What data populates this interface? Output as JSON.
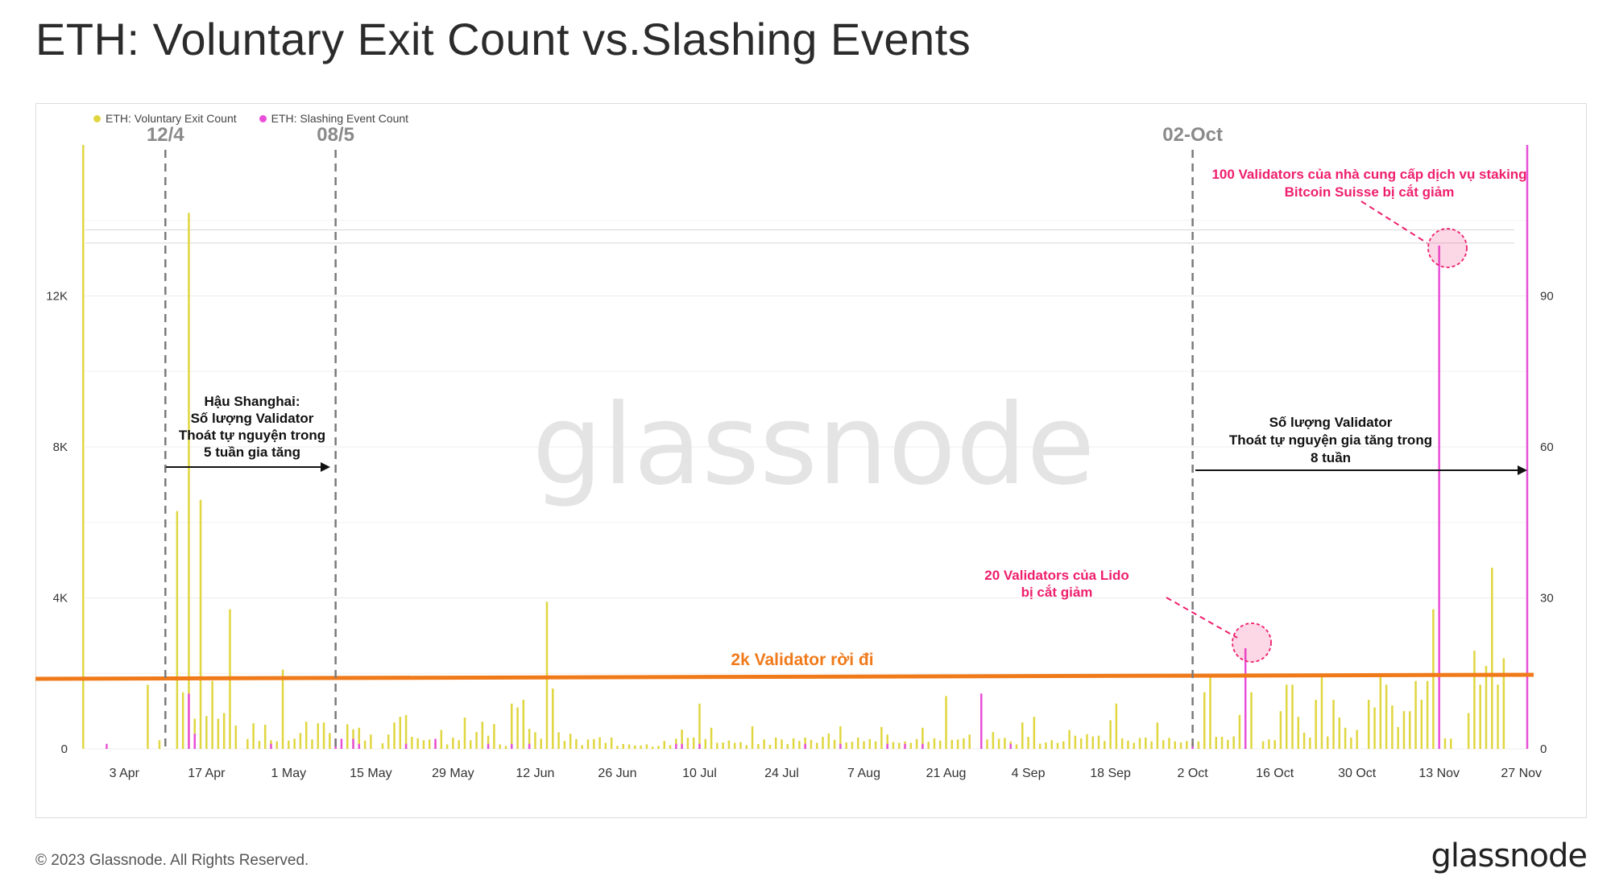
{
  "title": "ETH: Voluntary Exit Count vs.Slashing Events",
  "footer": "© 2023 Glassnode. All Rights Reserved.",
  "brand": "glassnode",
  "watermark": "glassnode",
  "legend": {
    "exit": "ETH: Voluntary Exit Count",
    "slash": "ETH: Slashing Event Count"
  },
  "colors": {
    "exit": "#e0d640",
    "slash": "#e94fd8",
    "threshold": "#f07a1a",
    "annotation": "#ee1f6d",
    "marker": "#7a7a7a"
  },
  "annotations": {
    "line_12_4": "12/4",
    "line_08_5": "08/5",
    "line_02_oct": "02-Oct",
    "shanghai": [
      "Hậu Shanghai:",
      "Số lượng Validator",
      "Thoát tự nguyện trong",
      "5 tuần gia tăng"
    ],
    "eight_weeks": [
      "Số lượng Validator",
      "Thoát tự nguyện gia tăng trong",
      "8 tuần"
    ],
    "lido": [
      "20 Validators của Lido",
      "bị cắt giảm"
    ],
    "bitcoin_suisse": [
      "100 Validators của nhà cung cấp dịch vụ staking",
      "Bitcoin Suisse bị cắt giảm"
    ],
    "threshold_label": "2k Validator rời đi"
  },
  "chart_data": {
    "type": "bar",
    "x_axis": {
      "start": "2023-03-26",
      "end": "2023-11-28",
      "tick_labels": [
        "3 Apr",
        "17 Apr",
        "1 May",
        "15 May",
        "29 May",
        "12 Jun",
        "26 Jun",
        "10 Jul",
        "24 Jul",
        "7 Aug",
        "21 Aug",
        "4 Sep",
        "18 Sep",
        "2 Oct",
        "16 Oct",
        "30 Oct",
        "13 Nov",
        "27 Nov"
      ]
    },
    "y_left": {
      "ylim": [
        0,
        16000
      ],
      "ticks": [
        0,
        4000,
        8000,
        12000
      ],
      "tick_labels": [
        "0",
        "4K",
        "8K",
        "12K"
      ]
    },
    "y_right": {
      "ylim": [
        0,
        120
      ],
      "ticks": [
        0,
        30,
        60,
        90
      ],
      "tick_labels": [
        "0",
        "30",
        "60",
        "90"
      ]
    },
    "threshold": 1900,
    "series": [
      {
        "name": "ETH: Voluntary Exit Count",
        "axis": "left",
        "points": [
          [
            "2023-03-27",
            16000
          ],
          [
            "2023-04-07",
            1700
          ],
          [
            "2023-04-09",
            230
          ],
          [
            "2023-04-12",
            6300
          ],
          [
            "2023-04-13",
            1500
          ],
          [
            "2023-04-14",
            14200
          ],
          [
            "2023-04-15",
            800
          ],
          [
            "2023-04-16",
            6600
          ],
          [
            "2023-04-17",
            870
          ],
          [
            "2023-04-18",
            1800
          ],
          [
            "2023-04-19",
            800
          ],
          [
            "2023-04-20",
            950
          ],
          [
            "2023-04-21",
            3700
          ],
          [
            "2023-04-22",
            620
          ],
          [
            "2023-04-24",
            260
          ],
          [
            "2023-04-25",
            680
          ],
          [
            "2023-04-26",
            210
          ],
          [
            "2023-04-27",
            640
          ],
          [
            "2023-04-28",
            230
          ],
          [
            "2023-04-29",
            200
          ],
          [
            "2023-04-30",
            2100
          ],
          [
            "2023-05-01",
            220
          ],
          [
            "2023-05-02",
            270
          ],
          [
            "2023-05-03",
            420
          ],
          [
            "2023-05-04",
            720
          ],
          [
            "2023-05-05",
            250
          ],
          [
            "2023-05-06",
            680
          ],
          [
            "2023-05-07",
            700
          ],
          [
            "2023-05-08",
            420
          ],
          [
            "2023-05-09",
            200
          ],
          [
            "2023-05-11",
            650
          ],
          [
            "2023-05-12",
            520
          ],
          [
            "2023-05-13",
            560
          ],
          [
            "2023-05-14",
            220
          ],
          [
            "2023-05-15",
            380
          ],
          [
            "2023-05-17",
            150
          ],
          [
            "2023-05-18",
            380
          ],
          [
            "2023-05-19",
            700
          ],
          [
            "2023-05-20",
            850
          ],
          [
            "2023-05-21",
            900
          ],
          [
            "2023-05-22",
            320
          ],
          [
            "2023-05-23",
            280
          ],
          [
            "2023-05-24",
            230
          ],
          [
            "2023-05-25",
            250
          ],
          [
            "2023-05-26",
            160
          ],
          [
            "2023-05-27",
            500
          ],
          [
            "2023-05-28",
            120
          ],
          [
            "2023-05-29",
            300
          ],
          [
            "2023-05-30",
            230
          ],
          [
            "2023-05-31",
            830
          ],
          [
            "2023-06-01",
            230
          ],
          [
            "2023-06-02",
            450
          ],
          [
            "2023-06-03",
            720
          ],
          [
            "2023-06-04",
            350
          ],
          [
            "2023-06-05",
            660
          ],
          [
            "2023-06-06",
            120
          ],
          [
            "2023-06-07",
            80
          ],
          [
            "2023-06-08",
            1200
          ],
          [
            "2023-06-09",
            1100
          ],
          [
            "2023-06-10",
            1300
          ],
          [
            "2023-06-11",
            530
          ],
          [
            "2023-06-12",
            440
          ],
          [
            "2023-06-13",
            270
          ],
          [
            "2023-06-14",
            3900
          ],
          [
            "2023-06-15",
            1600
          ],
          [
            "2023-06-16",
            440
          ],
          [
            "2023-06-17",
            210
          ],
          [
            "2023-06-18",
            400
          ],
          [
            "2023-06-19",
            260
          ],
          [
            "2023-06-20",
            100
          ],
          [
            "2023-06-21",
            250
          ],
          [
            "2023-06-22",
            260
          ],
          [
            "2023-06-23",
            310
          ],
          [
            "2023-06-24",
            160
          ],
          [
            "2023-06-25",
            300
          ],
          [
            "2023-06-26",
            80
          ],
          [
            "2023-06-27",
            130
          ],
          [
            "2023-06-28",
            120
          ],
          [
            "2023-06-29",
            90
          ],
          [
            "2023-06-30",
            90
          ],
          [
            "2023-07-01",
            120
          ],
          [
            "2023-07-02",
            60
          ],
          [
            "2023-07-03",
            80
          ],
          [
            "2023-07-04",
            210
          ],
          [
            "2023-07-05",
            100
          ],
          [
            "2023-07-06",
            270
          ],
          [
            "2023-07-07",
            510
          ],
          [
            "2023-07-08",
            290
          ],
          [
            "2023-07-09",
            300
          ],
          [
            "2023-07-10",
            1200
          ],
          [
            "2023-07-11",
            260
          ],
          [
            "2023-07-12",
            560
          ],
          [
            "2023-07-13",
            160
          ],
          [
            "2023-07-14",
            170
          ],
          [
            "2023-07-15",
            220
          ],
          [
            "2023-07-16",
            160
          ],
          [
            "2023-07-17",
            180
          ],
          [
            "2023-07-18",
            100
          ],
          [
            "2023-07-19",
            600
          ],
          [
            "2023-07-20",
            130
          ],
          [
            "2023-07-21",
            250
          ],
          [
            "2023-07-22",
            110
          ],
          [
            "2023-07-23",
            300
          ],
          [
            "2023-07-24",
            250
          ],
          [
            "2023-07-25",
            130
          ],
          [
            "2023-07-26",
            280
          ],
          [
            "2023-07-27",
            210
          ],
          [
            "2023-07-28",
            300
          ],
          [
            "2023-07-29",
            240
          ],
          [
            "2023-07-30",
            160
          ],
          [
            "2023-07-31",
            320
          ],
          [
            "2023-08-01",
            410
          ],
          [
            "2023-08-02",
            240
          ],
          [
            "2023-08-03",
            600
          ],
          [
            "2023-08-04",
            170
          ],
          [
            "2023-08-05",
            190
          ],
          [
            "2023-08-06",
            300
          ],
          [
            "2023-08-07",
            200
          ],
          [
            "2023-08-08",
            260
          ],
          [
            "2023-08-09",
            200
          ],
          [
            "2023-08-10",
            580
          ],
          [
            "2023-08-11",
            380
          ],
          [
            "2023-08-12",
            180
          ],
          [
            "2023-08-13",
            160
          ],
          [
            "2023-08-14",
            200
          ],
          [
            "2023-08-15",
            160
          ],
          [
            "2023-08-16",
            260
          ],
          [
            "2023-08-17",
            560
          ],
          [
            "2023-08-18",
            190
          ],
          [
            "2023-08-19",
            280
          ],
          [
            "2023-08-20",
            220
          ],
          [
            "2023-08-21",
            1400
          ],
          [
            "2023-08-22",
            240
          ],
          [
            "2023-08-23",
            250
          ],
          [
            "2023-08-24",
            280
          ],
          [
            "2023-08-25",
            380
          ],
          [
            "2023-08-27",
            300
          ],
          [
            "2023-08-28",
            250
          ],
          [
            "2023-08-29",
            450
          ],
          [
            "2023-08-30",
            270
          ],
          [
            "2023-08-31",
            290
          ],
          [
            "2023-09-01",
            200
          ],
          [
            "2023-09-02",
            120
          ],
          [
            "2023-09-03",
            700
          ],
          [
            "2023-09-04",
            320
          ],
          [
            "2023-09-05",
            850
          ],
          [
            "2023-09-06",
            140
          ],
          [
            "2023-09-07",
            170
          ],
          [
            "2023-09-08",
            230
          ],
          [
            "2023-09-09",
            160
          ],
          [
            "2023-09-10",
            200
          ],
          [
            "2023-09-11",
            500
          ],
          [
            "2023-09-12",
            350
          ],
          [
            "2023-09-13",
            280
          ],
          [
            "2023-09-14",
            390
          ],
          [
            "2023-09-15",
            330
          ],
          [
            "2023-09-16",
            350
          ],
          [
            "2023-09-17",
            210
          ],
          [
            "2023-09-18",
            760
          ],
          [
            "2023-09-19",
            1200
          ],
          [
            "2023-09-20",
            280
          ],
          [
            "2023-09-21",
            220
          ],
          [
            "2023-09-22",
            160
          ],
          [
            "2023-09-23",
            290
          ],
          [
            "2023-09-24",
            300
          ],
          [
            "2023-09-25",
            200
          ],
          [
            "2023-09-26",
            700
          ],
          [
            "2023-09-27",
            230
          ],
          [
            "2023-09-28",
            290
          ],
          [
            "2023-09-29",
            200
          ],
          [
            "2023-09-30",
            170
          ],
          [
            "2023-10-01",
            210
          ],
          [
            "2023-10-02",
            200
          ],
          [
            "2023-10-03",
            200
          ],
          [
            "2023-10-04",
            1500
          ],
          [
            "2023-10-05",
            1900
          ],
          [
            "2023-10-06",
            320
          ],
          [
            "2023-10-07",
            320
          ],
          [
            "2023-10-08",
            240
          ],
          [
            "2023-10-09",
            330
          ],
          [
            "2023-10-10",
            900
          ],
          [
            "2023-10-11",
            280
          ],
          [
            "2023-10-12",
            1500
          ],
          [
            "2023-10-14",
            200
          ],
          [
            "2023-10-15",
            250
          ],
          [
            "2023-10-16",
            230
          ],
          [
            "2023-10-17",
            1000
          ],
          [
            "2023-10-18",
            1700
          ],
          [
            "2023-10-19",
            1700
          ],
          [
            "2023-10-20",
            850
          ],
          [
            "2023-10-21",
            430
          ],
          [
            "2023-10-22",
            300
          ],
          [
            "2023-10-23",
            1300
          ],
          [
            "2023-10-24",
            1900
          ],
          [
            "2023-10-25",
            330
          ],
          [
            "2023-10-26",
            1300
          ],
          [
            "2023-10-27",
            830
          ],
          [
            "2023-10-28",
            560
          ],
          [
            "2023-10-29",
            300
          ],
          [
            "2023-10-30",
            500
          ],
          [
            "2023-11-01",
            1300
          ],
          [
            "2023-11-02",
            1100
          ],
          [
            "2023-11-03",
            1900
          ],
          [
            "2023-11-04",
            1700
          ],
          [
            "2023-11-05",
            1150
          ],
          [
            "2023-11-06",
            580
          ],
          [
            "2023-11-07",
            1000
          ],
          [
            "2023-11-08",
            1000
          ],
          [
            "2023-11-09",
            1800
          ],
          [
            "2023-11-10",
            1300
          ],
          [
            "2023-11-11",
            1800
          ],
          [
            "2023-11-12",
            3700
          ],
          [
            "2023-11-14",
            280
          ],
          [
            "2023-11-15",
            270
          ],
          [
            "2023-11-18",
            950
          ],
          [
            "2023-11-19",
            2600
          ],
          [
            "2023-11-20",
            1700
          ],
          [
            "2023-11-21",
            2200
          ],
          [
            "2023-11-22",
            4800
          ],
          [
            "2023-11-23",
            1700
          ],
          [
            "2023-11-24",
            2400
          ]
        ]
      },
      {
        "name": "ETH: Slashing Event Count",
        "axis": "right",
        "points": [
          [
            "2023-03-31",
            1
          ],
          [
            "2023-04-14",
            11
          ],
          [
            "2023-04-15",
            3
          ],
          [
            "2023-04-28",
            1
          ],
          [
            "2023-05-09",
            2
          ],
          [
            "2023-05-10",
            2
          ],
          [
            "2023-05-12",
            2
          ],
          [
            "2023-05-13",
            1
          ],
          [
            "2023-05-21",
            1
          ],
          [
            "2023-05-26",
            2
          ],
          [
            "2023-06-04",
            1
          ],
          [
            "2023-06-08",
            1
          ],
          [
            "2023-06-11",
            1
          ],
          [
            "2023-07-06",
            1
          ],
          [
            "2023-07-07",
            1
          ],
          [
            "2023-07-10",
            1
          ],
          [
            "2023-07-28",
            1
          ],
          [
            "2023-08-03",
            1
          ],
          [
            "2023-08-11",
            1
          ],
          [
            "2023-08-14",
            1
          ],
          [
            "2023-08-17",
            1
          ],
          [
            "2023-08-27",
            11
          ],
          [
            "2023-09-01",
            1
          ],
          [
            "2023-10-02",
            1
          ],
          [
            "2023-10-11",
            20
          ],
          [
            "2023-11-13",
            100
          ],
          [
            "2023-11-28",
            120
          ]
        ]
      }
    ]
  }
}
